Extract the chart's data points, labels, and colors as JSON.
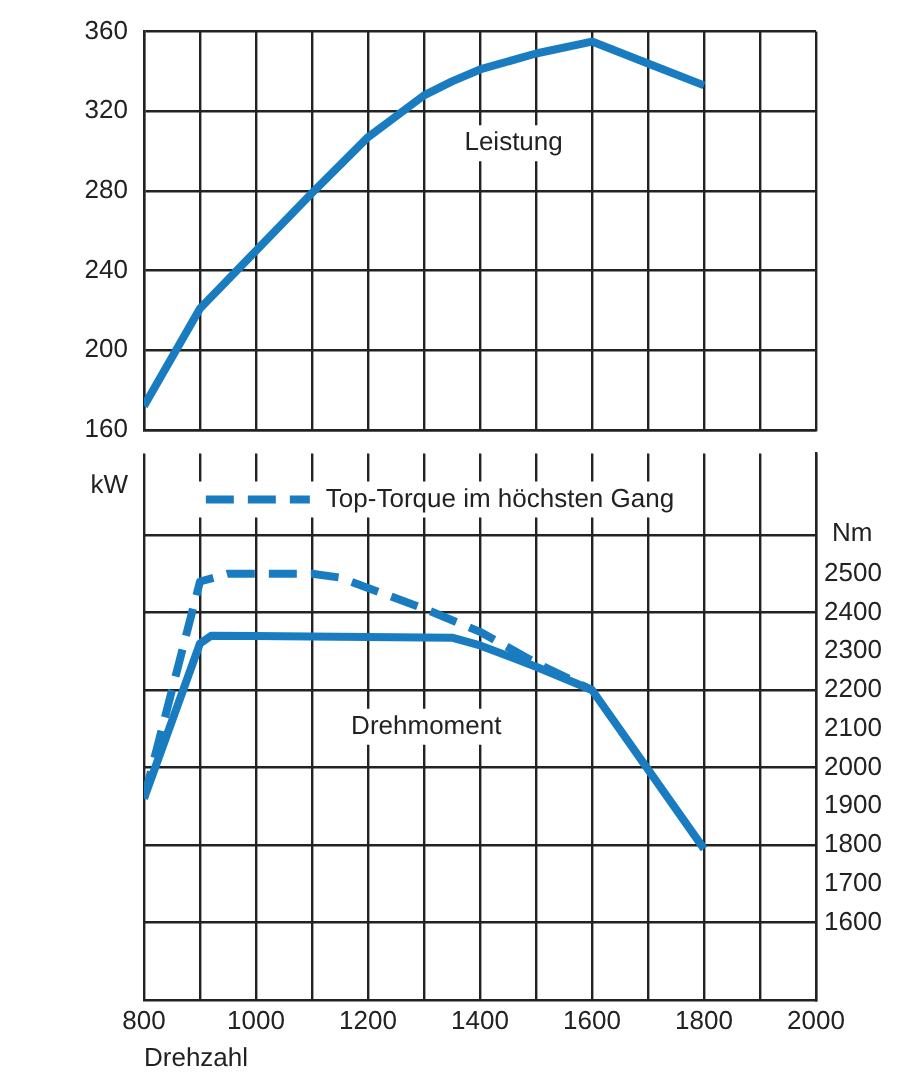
{
  "chart_data": [
    {
      "type": "line",
      "ylabel": "kW",
      "xlim": [
        800,
        2000
      ],
      "ylim": [
        160,
        360
      ],
      "yticks": [
        160,
        200,
        240,
        280,
        320,
        360
      ],
      "xticks": [
        800,
        {
          "value": 900,
          "label": null
        },
        1000,
        {
          "value": 1100,
          "label": null
        },
        1200,
        {
          "value": 1300,
          "label": null
        },
        1400,
        {
          "value": 1500,
          "label": null
        },
        1600,
        {
          "value": 1700,
          "label": null
        },
        1800,
        {
          "value": 1900,
          "label": null
        },
        2000
      ],
      "tick_labels": "y",
      "grid": true,
      "marker": "none",
      "series": [
        {
          "color": "#1a7cc0",
          "x": [
            800,
            900,
            1000,
            1100,
            1200,
            1300,
            1350,
            1400,
            1500,
            1600,
            1700,
            1800
          ],
          "values": [
            172,
            221,
            250,
            279,
            307,
            328,
            335,
            341,
            349,
            355,
            344,
            333
          ]
        }
      ],
      "annotations": [
        "Leistung"
      ]
    },
    {
      "type": "line",
      "xlabel": "Drehzahl",
      "y2label": "Nm",
      "xlim": [
        800,
        2000
      ],
      "y2lim": [
        1400,
        2810
      ],
      "y2ticks": [
        1600,
        1700,
        1800,
        1900,
        2000,
        2100,
        2200,
        2300,
        2400,
        2500,
        {
          "value": 2600,
          "label": null
        }
      ],
      "xticks": [
        800,
        {
          "value": 900,
          "label": null
        },
        1000,
        {
          "value": 1100,
          "label": null
        },
        1200,
        {
          "value": 1300,
          "label": null
        },
        1400,
        {
          "value": 1500,
          "label": null
        },
        1600,
        {
          "value": 1700,
          "label": null
        },
        1800,
        {
          "value": 1900,
          "label": null
        },
        2000
      ],
      "grid": true,
      "marker": "none",
      "legend": "top",
      "series": [
        {
          "color": "#1a7cc0",
          "axis": "y2",
          "line_style": "solid",
          "x": [
            800,
            900,
            920,
            1350,
            1400,
            1500,
            1600,
            1800
          ],
          "values": [
            1920,
            2320,
            2340,
            2335,
            2315,
            2260,
            2200,
            1790
          ]
        },
        {
          "name": "Top-Torque im höchsten Gang",
          "color": "#1a7cc0",
          "axis": "y2",
          "line_style": "dashed",
          "x": [
            800,
            900,
            950,
            1100,
            1150,
            1300,
            1400,
            1500,
            1600
          ],
          "values": [
            1920,
            2480,
            2500,
            2500,
            2490,
            2410,
            2350,
            2270,
            2200
          ]
        }
      ],
      "annotations": [
        "Drehmoment"
      ]
    }
  ]
}
